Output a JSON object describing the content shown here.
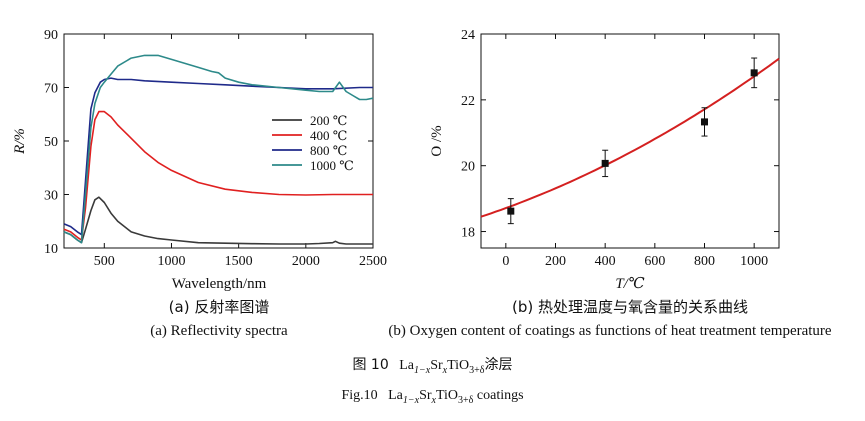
{
  "colors": {
    "c200": "#3a3a3a",
    "c400": "#e02020",
    "c800": "#1f2a8a",
    "c1000": "#2d8a8a",
    "fit": "#d42020",
    "marker": "#111111"
  },
  "chart_data": [
    {
      "type": "line",
      "title": "",
      "xlabel": "Wavelength/nm",
      "ylabel": "R/%",
      "xlim": [
        200,
        2500
      ],
      "ylim": [
        10,
        90
      ],
      "xticks": [
        "500",
        "1000",
        "1500",
        "2000",
        "2500"
      ],
      "yticks": [
        "10",
        "30",
        "50",
        "70",
        "90"
      ],
      "legend_position": "right",
      "series": [
        {
          "name": "200 ℃",
          "color_key": "c200",
          "x": [
            200,
            250,
            300,
            330,
            360,
            400,
            430,
            460,
            500,
            550,
            600,
            700,
            800,
            900,
            1000,
            1200,
            1400,
            1600,
            1800,
            2000,
            2100,
            2200,
            2220,
            2250,
            2300,
            2400,
            2500
          ],
          "y": [
            16,
            15,
            13,
            12,
            17,
            24,
            28,
            29,
            27,
            23,
            20,
            16,
            14.5,
            13.5,
            13,
            12,
            11.8,
            11.6,
            11.5,
            11.5,
            11.7,
            12,
            12.5,
            11.8,
            11.5,
            11.5,
            11.5
          ]
        },
        {
          "name": "400 ℃",
          "color_key": "c400",
          "x": [
            200,
            250,
            300,
            330,
            360,
            400,
            430,
            460,
            500,
            550,
            600,
            700,
            800,
            900,
            1000,
            1200,
            1400,
            1600,
            1800,
            2000,
            2200,
            2400,
            2500
          ],
          "y": [
            17,
            16,
            14,
            13,
            25,
            48,
            58,
            61,
            61,
            59,
            56,
            51,
            46,
            42,
            39,
            34.5,
            32,
            30.8,
            30,
            29.8,
            30,
            30,
            30
          ]
        },
        {
          "name": "800 ℃",
          "color_key": "c800",
          "x": [
            200,
            250,
            300,
            330,
            360,
            400,
            430,
            470,
            500,
            550,
            600,
            700,
            800,
            1000,
            1200,
            1400,
            1600,
            1800,
            2000,
            2200,
            2400,
            2500
          ],
          "y": [
            19,
            18,
            16,
            15,
            35,
            62,
            68,
            72,
            73,
            73.5,
            73,
            73,
            72.5,
            72,
            71.5,
            71,
            70.5,
            70,
            69.5,
            69.5,
            70,
            70
          ]
        },
        {
          "name": "1000 ℃",
          "color_key": "c1000",
          "x": [
            200,
            250,
            300,
            330,
            360,
            400,
            430,
            470,
            500,
            550,
            600,
            700,
            800,
            900,
            1000,
            1100,
            1200,
            1300,
            1350,
            1400,
            1500,
            1600,
            1800,
            2000,
            2100,
            2200,
            2250,
            2300,
            2350,
            2400,
            2450,
            2500
          ],
          "y": [
            16,
            15,
            13,
            12,
            30,
            55,
            64,
            70,
            72,
            75,
            78,
            81,
            82,
            82,
            80.5,
            79,
            77.5,
            76,
            75.5,
            73.5,
            72,
            71,
            70,
            69,
            68.5,
            68.5,
            72,
            68.5,
            67,
            65.5,
            65.5,
            66
          ]
        }
      ]
    },
    {
      "type": "scatter",
      "title": "",
      "xlabel": "T/℃",
      "ylabel": "O /%",
      "xlim": [
        -100,
        1100
      ],
      "ylim": [
        17.5,
        24
      ],
      "xticks": [
        "0",
        "200",
        "400",
        "600",
        "800",
        "1000"
      ],
      "yticks": [
        "18",
        "20",
        "22",
        "24"
      ],
      "points": [
        {
          "x": 20,
          "y": 18.62,
          "err": 0.38
        },
        {
          "x": 400,
          "y": 20.07,
          "err": 0.4
        },
        {
          "x": 800,
          "y": 21.33,
          "err": 0.43
        },
        {
          "x": 1000,
          "y": 22.82,
          "err": 0.45
        }
      ],
      "fit": {
        "x0": -100,
        "x1": 1100,
        "y_at_x0": 18.45,
        "y_at_x1": 23.25,
        "shape": "quadratic",
        "y_at_mid": 20.4
      }
    }
  ],
  "captions": {
    "a_cn": "(a) 反射率图谱",
    "a_en": "(a) Reflectivity spectra",
    "b_cn": "(b) 热处理温度与氧含量的关系曲线",
    "b_en": "(b) Oxygen content of coatings as functions of heat treatment temperature"
  },
  "figure": {
    "cn_prefix": "图 10",
    "en_prefix": "Fig.10",
    "formula": {
      "la": "La",
      "la_sub": "1−x",
      "sr": "Sr",
      "sr_sub": "x",
      "tio": "TiO",
      "o_sub": "3+δ"
    },
    "cn_suffix": "涂层",
    "en_suffix": " coatings"
  }
}
